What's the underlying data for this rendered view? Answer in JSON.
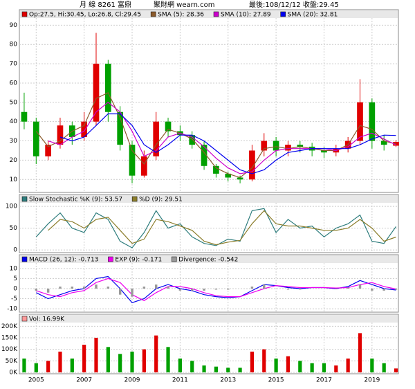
{
  "header": {
    "stock": "月 線 8261 富鼎",
    "site": "聚財網 wearn.com",
    "last": "最後:108/12/12 收盤:29.45"
  },
  "chart_data": [
    {
      "type": "candlestick",
      "name": "Op:27.5, Hi:30.45, Lo:26.8, Cl:29.45",
      "color": "#e00000",
      "up_color": "#e00000",
      "down_color": "#00a000",
      "x": [
        2004.5,
        2005,
        2005.5,
        2006,
        2006.5,
        2007,
        2007.5,
        2008,
        2008.5,
        2009,
        2009.5,
        2010,
        2010.5,
        2011,
        2011.5,
        2012,
        2012.5,
        2013,
        2013.5,
        2014,
        2014.5,
        2015,
        2015.5,
        2016,
        2016.5,
        2017,
        2017.5,
        2018,
        2018.5,
        2019,
        2019.5,
        2020
      ],
      "open": [
        45,
        40,
        22,
        28,
        38,
        32,
        40,
        70,
        45,
        28,
        12,
        22,
        40,
        35,
        33,
        28,
        17,
        13,
        11,
        10,
        25,
        30,
        25,
        28,
        27,
        25,
        24,
        26,
        30,
        50,
        30,
        27.5
      ],
      "high": [
        55,
        42,
        30,
        42,
        40,
        45,
        86,
        72,
        48,
        30,
        25,
        45,
        42,
        38,
        35,
        30,
        18,
        14,
        12,
        28,
        34,
        32,
        30,
        30,
        29,
        27,
        28,
        32,
        62,
        52,
        33,
        30.45
      ],
      "low": [
        36,
        18,
        20,
        26,
        28,
        30,
        38,
        40,
        25,
        8,
        11,
        20,
        32,
        30,
        26,
        15,
        11,
        9,
        8,
        9,
        22,
        22,
        22,
        24,
        22,
        21,
        22,
        24,
        28,
        26,
        25,
        26.8
      ],
      "close": [
        40,
        22,
        28,
        38,
        32,
        40,
        70,
        45,
        28,
        12,
        22,
        40,
        35,
        33,
        28,
        17,
        13,
        11,
        10,
        25,
        30,
        25,
        28,
        27,
        25,
        24,
        26,
        30,
        50,
        30,
        28,
        29.45
      ],
      "series": [
        {
          "name": "SMA (5): 28.36",
          "color": "#8b5a2b",
          "values": [
            null,
            35,
            27,
            30,
            35,
            38,
            52,
            55,
            42,
            25,
            18,
            28,
            36,
            34,
            31,
            24,
            16,
            13,
            11,
            16,
            26,
            27,
            26,
            27,
            26,
            25,
            25,
            28,
            38,
            36,
            30,
            28.36
          ]
        },
        {
          "name": "SMA (10): 27.89",
          "color": "#cc00cc",
          "values": [
            null,
            null,
            30,
            28,
            32,
            35,
            45,
            50,
            45,
            35,
            22,
            25,
            32,
            34,
            32,
            27,
            21,
            16,
            13,
            14,
            20,
            25,
            26,
            26,
            26,
            26,
            25,
            27,
            32,
            34,
            31,
            27.89
          ]
        },
        {
          "name": "SMA (20): 32.81",
          "color": "#0000ee",
          "values": [
            null,
            null,
            null,
            32,
            30,
            32,
            38,
            44,
            44,
            38,
            28,
            24,
            28,
            33,
            33,
            30,
            25,
            20,
            15,
            13,
            15,
            20,
            24,
            25,
            26,
            26,
            26,
            26,
            28,
            31,
            33,
            32.81
          ]
        }
      ],
      "xlim": [
        2004.3,
        2020.1
      ],
      "ylim": [
        4,
        93
      ],
      "yticks": [
        10,
        20,
        30,
        40,
        50,
        60,
        70,
        80,
        90
      ],
      "grid": true
    },
    {
      "type": "line",
      "x": [
        2004.5,
        2005,
        2005.5,
        2006,
        2006.5,
        2007,
        2007.5,
        2008,
        2008.5,
        2009,
        2009.5,
        2010,
        2010.5,
        2011,
        2011.5,
        2012,
        2012.5,
        2013,
        2013.5,
        2014,
        2014.5,
        2015,
        2015.5,
        2016,
        2016.5,
        2017,
        2017.5,
        2018,
        2018.5,
        2019,
        2019.5,
        2020
      ],
      "series": [
        {
          "name": "Slow Stochastic %K (9): 53.57",
          "color": "#2e7d7d",
          "values": [
            null,
            30,
            60,
            85,
            50,
            40,
            85,
            70,
            20,
            5,
            40,
            90,
            50,
            60,
            30,
            15,
            10,
            25,
            20,
            90,
            95,
            40,
            70,
            50,
            55,
            30,
            50,
            60,
            80,
            20,
            15,
            53.57
          ]
        },
        {
          "name": "%D (9): 29.51",
          "color": "#8b7d2b",
          "values": [
            null,
            null,
            45,
            70,
            65,
            50,
            70,
            75,
            45,
            15,
            25,
            70,
            65,
            55,
            45,
            20,
            12,
            18,
            22,
            60,
            90,
            60,
            55,
            55,
            50,
            45,
            45,
            50,
            70,
            50,
            20,
            29.51
          ]
        }
      ],
      "xlim": [
        2004.3,
        2020.1
      ],
      "ylim": [
        -3,
        105
      ],
      "yticks": [
        0,
        50,
        100
      ],
      "grid": true
    },
    {
      "type": "line",
      "x": [
        2004.5,
        2005,
        2005.5,
        2006,
        2006.5,
        2007,
        2007.5,
        2008,
        2008.5,
        2009,
        2009.5,
        2010,
        2010.5,
        2011,
        2011.5,
        2012,
        2012.5,
        2013,
        2013.5,
        2014,
        2014.5,
        2015,
        2015.5,
        2016,
        2016.5,
        2017,
        2017.5,
        2018,
        2018.5,
        2019,
        2019.5,
        2020
      ],
      "series": [
        {
          "name": "MACD (26, 12): -0.713",
          "color": "#0000ee",
          "values": [
            null,
            -2,
            -5,
            -3,
            -1,
            0,
            5,
            6,
            0,
            -7,
            -5,
            0,
            2,
            0,
            -1,
            -3,
            -4,
            -4.5,
            -4,
            -1,
            2,
            1.5,
            0.5,
            0,
            0.5,
            0.5,
            0,
            1,
            4,
            2,
            0,
            -0.713
          ]
        },
        {
          "name": "EXP (9): -0.171",
          "color": "#ee00ee",
          "values": [
            null,
            -1,
            -3,
            -4,
            -2,
            -1,
            3,
            5,
            3,
            -3,
            -6,
            -2,
            1,
            1,
            0,
            -2,
            -3.5,
            -4,
            -4,
            -2,
            0,
            1.5,
            1,
            0.5,
            0.5,
            0.5,
            0.3,
            0.5,
            2,
            3,
            1,
            -0.171
          ]
        },
        {
          "name": "Divergence: -0.542",
          "color": "#999999",
          "style": "bar",
          "values": [
            null,
            -1,
            -2,
            1,
            1,
            1,
            2,
            1,
            -3,
            -4,
            1,
            2,
            1,
            -1,
            -1,
            -1,
            -0.5,
            -0.5,
            0,
            1,
            2,
            0,
            -0.5,
            -0.5,
            0,
            0,
            -0.3,
            0.5,
            2,
            -1,
            -1,
            -0.542
          ]
        }
      ],
      "xlim": [
        2004.3,
        2020.1
      ],
      "ylim": [
        -11,
        12
      ],
      "yticks": [
        -10,
        -5,
        0,
        5,
        10
      ],
      "grid": true
    },
    {
      "type": "bar",
      "name": "Vol: 16.99K",
      "color": "#ff9999",
      "x": [
        2004.5,
        2005,
        2005.5,
        2006,
        2006.5,
        2007,
        2007.5,
        2008,
        2008.5,
        2009,
        2009.5,
        2010,
        2010.5,
        2011,
        2011.5,
        2012,
        2012.5,
        2013,
        2013.5,
        2014,
        2014.5,
        2015,
        2015.5,
        2016,
        2016.5,
        2017,
        2017.5,
        2018,
        2018.5,
        2019,
        2019.5,
        2020
      ],
      "values": [
        60000,
        40000,
        50000,
        90000,
        60000,
        120000,
        150000,
        110000,
        80000,
        90000,
        100000,
        160000,
        110000,
        60000,
        50000,
        30000,
        25000,
        20000,
        20000,
        90000,
        100000,
        60000,
        70000,
        50000,
        40000,
        40000,
        30000,
        60000,
        170000,
        60000,
        40000,
        16990
      ],
      "colors": [
        "#00a000",
        "#00a000",
        "#e00000",
        "#e00000",
        "#00a000",
        "#e00000",
        "#e00000",
        "#00a000",
        "#00a000",
        "#00a000",
        "#e00000",
        "#e00000",
        "#00a000",
        "#00a000",
        "#00a000",
        "#00a000",
        "#00a000",
        "#00a000",
        "#00a000",
        "#e00000",
        "#e00000",
        "#00a000",
        "#e00000",
        "#00a000",
        "#00a000",
        "#00a000",
        "#e00000",
        "#e00000",
        "#e00000",
        "#00a000",
        "#00a000",
        "#e00000"
      ],
      "xlim": [
        2004.3,
        2020.1
      ],
      "ylim": [
        0,
        210000
      ],
      "yticks": [
        {
          "value": 0,
          "label": "0K"
        },
        {
          "value": 50000,
          "label": "50K"
        },
        {
          "value": 100000,
          "label": "100K"
        },
        {
          "value": 150000,
          "label": "150K"
        },
        {
          "value": 200000,
          "label": "200K"
        }
      ],
      "xticks": [
        2005,
        2007,
        2009,
        2011,
        2013,
        2015,
        2017,
        2019
      ],
      "grid": true
    }
  ]
}
